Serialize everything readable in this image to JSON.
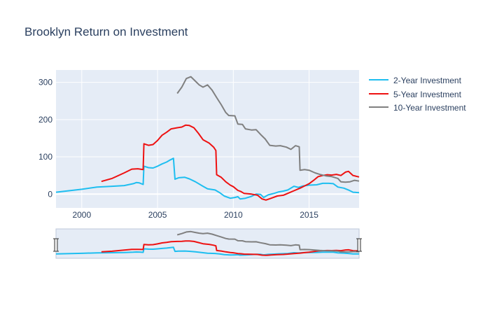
{
  "chart_data": {
    "type": "line",
    "title": "Brooklyn Return on Investment",
    "xlabel": "",
    "ylabel": "",
    "xlim": [
      1998.3,
      2018.3
    ],
    "ylim": [
      -37,
      333
    ],
    "x_ticks": [
      2000,
      2005,
      2010,
      2015
    ],
    "y_ticks": [
      0,
      100,
      200,
      300
    ],
    "grid": true,
    "legend_position": "right",
    "range_slider": true,
    "series": [
      {
        "name": "2-Year Investment",
        "color": "#1ebef0",
        "points": [
          [
            1998.3,
            5
          ],
          [
            2000,
            13
          ],
          [
            2001,
            19
          ],
          [
            2002,
            21
          ],
          [
            2002.8,
            23
          ],
          [
            2003.4,
            28
          ],
          [
            2003.6,
            31
          ],
          [
            2003.8,
            30
          ],
          [
            2004.05,
            26
          ],
          [
            2004.1,
            75
          ],
          [
            2004.4,
            71
          ],
          [
            2004.7,
            70
          ],
          [
            2005,
            75
          ],
          [
            2005.3,
            81
          ],
          [
            2005.6,
            86
          ],
          [
            2005.85,
            92
          ],
          [
            2006.05,
            96
          ],
          [
            2006.15,
            40
          ],
          [
            2006.4,
            44
          ],
          [
            2006.8,
            45
          ],
          [
            2007.1,
            41
          ],
          [
            2007.5,
            33
          ],
          [
            2008,
            21
          ],
          [
            2008.3,
            14
          ],
          [
            2008.8,
            11
          ],
          [
            2009.1,
            4
          ],
          [
            2009.4,
            -5
          ],
          [
            2009.8,
            -11
          ],
          [
            2010.1,
            -9
          ],
          [
            2010.3,
            -7
          ],
          [
            2010.45,
            -13
          ],
          [
            2010.8,
            -11
          ],
          [
            2011.2,
            -6
          ],
          [
            2011.5,
            0
          ],
          [
            2011.8,
            -1
          ],
          [
            2012,
            -9
          ],
          [
            2012.3,
            -2
          ],
          [
            2012.7,
            2
          ],
          [
            2013,
            6
          ],
          [
            2013.3,
            8
          ],
          [
            2013.6,
            11
          ],
          [
            2014,
            21
          ],
          [
            2014.3,
            18
          ],
          [
            2014.6,
            22
          ],
          [
            2015,
            24
          ],
          [
            2015.5,
            25
          ],
          [
            2015.9,
            29
          ],
          [
            2016.3,
            29
          ],
          [
            2016.6,
            28
          ],
          [
            2016.9,
            19
          ],
          [
            2017.3,
            16
          ],
          [
            2017.6,
            11
          ],
          [
            2017.9,
            5
          ],
          [
            2018.3,
            4
          ]
        ]
      },
      {
        "name": "5-Year Investment",
        "color": "#ee1111",
        "points": [
          [
            2001.3,
            34
          ],
          [
            2002,
            42
          ],
          [
            2002.8,
            57
          ],
          [
            2003.3,
            67
          ],
          [
            2003.7,
            68
          ],
          [
            2004.05,
            66
          ],
          [
            2004.1,
            135
          ],
          [
            2004.4,
            131
          ],
          [
            2004.7,
            133
          ],
          [
            2005,
            144
          ],
          [
            2005.3,
            158
          ],
          [
            2005.6,
            166
          ],
          [
            2005.9,
            175
          ],
          [
            2006.3,
            178
          ],
          [
            2006.6,
            180
          ],
          [
            2006.85,
            185
          ],
          [
            2007.1,
            184
          ],
          [
            2007.4,
            178
          ],
          [
            2007.7,
            163
          ],
          [
            2008,
            146
          ],
          [
            2008.4,
            137
          ],
          [
            2008.7,
            126
          ],
          [
            2008.85,
            117
          ],
          [
            2008.9,
            52
          ],
          [
            2009.2,
            45
          ],
          [
            2009.5,
            33
          ],
          [
            2009.8,
            24
          ],
          [
            2010,
            20
          ],
          [
            2010.3,
            10
          ],
          [
            2010.5,
            7
          ],
          [
            2010.7,
            2
          ],
          [
            2011.2,
            0
          ],
          [
            2011.6,
            -3
          ],
          [
            2011.9,
            -13
          ],
          [
            2012.15,
            -16
          ],
          [
            2012.5,
            -11
          ],
          [
            2012.9,
            -5
          ],
          [
            2013.3,
            -3
          ],
          [
            2013.6,
            2
          ],
          [
            2014,
            9
          ],
          [
            2014.4,
            16
          ],
          [
            2014.7,
            22
          ],
          [
            2015,
            28
          ],
          [
            2015.3,
            37
          ],
          [
            2015.6,
            47
          ],
          [
            2015.9,
            50
          ],
          [
            2016.2,
            52
          ],
          [
            2016.5,
            51
          ],
          [
            2016.8,
            53
          ],
          [
            2017.1,
            50
          ],
          [
            2017.4,
            59
          ],
          [
            2017.6,
            61
          ],
          [
            2017.9,
            50
          ],
          [
            2018.3,
            46
          ]
        ]
      },
      {
        "name": "10-Year Investment",
        "color": "#808080",
        "points": [
          [
            2006.3,
            270
          ],
          [
            2006.6,
            287
          ],
          [
            2006.9,
            310
          ],
          [
            2007.2,
            315
          ],
          [
            2007.5,
            303
          ],
          [
            2007.75,
            293
          ],
          [
            2008,
            287
          ],
          [
            2008.3,
            293
          ],
          [
            2008.6,
            279
          ],
          [
            2008.9,
            259
          ],
          [
            2009.2,
            240
          ],
          [
            2009.5,
            219
          ],
          [
            2009.7,
            211
          ],
          [
            2010.1,
            210
          ],
          [
            2010.3,
            188
          ],
          [
            2010.6,
            187
          ],
          [
            2010.8,
            175
          ],
          [
            2011.2,
            172
          ],
          [
            2011.5,
            173
          ],
          [
            2011.8,
            160
          ],
          [
            2012.1,
            148
          ],
          [
            2012.4,
            131
          ],
          [
            2012.8,
            129
          ],
          [
            2013.1,
            130
          ],
          [
            2013.5,
            126
          ],
          [
            2013.8,
            120
          ],
          [
            2014.1,
            130
          ],
          [
            2014.35,
            127
          ],
          [
            2014.4,
            64
          ],
          [
            2014.7,
            66
          ],
          [
            2015,
            64
          ],
          [
            2015.4,
            57
          ],
          [
            2015.7,
            53
          ],
          [
            2016.1,
            49
          ],
          [
            2016.5,
            47
          ],
          [
            2016.9,
            42
          ],
          [
            2017.1,
            33
          ],
          [
            2017.4,
            32
          ],
          [
            2017.7,
            33
          ],
          [
            2018,
            37
          ],
          [
            2018.3,
            35
          ]
        ]
      }
    ]
  }
}
